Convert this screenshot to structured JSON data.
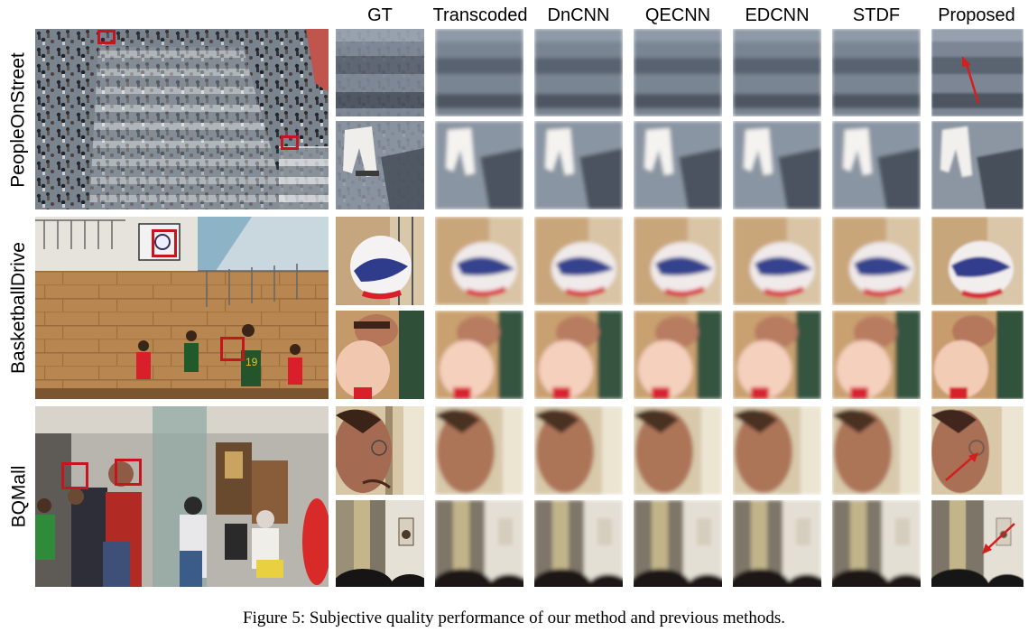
{
  "column_headers": [
    "GT",
    "Transcoded",
    "DnCNN",
    "QECNN",
    "EDCNN",
    "STDF",
    "Proposed"
  ],
  "sequences": [
    {
      "label": "PeopleOnStreet"
    },
    {
      "label": "BasketballDrive"
    },
    {
      "label": "BQMall"
    }
  ],
  "caption": "Figure 5: Subjective quality performance of our method and previous methods.",
  "colors": {
    "highlight_box": "#c4161c",
    "arrow": "#d41f1f",
    "background": "#ffffff"
  }
}
